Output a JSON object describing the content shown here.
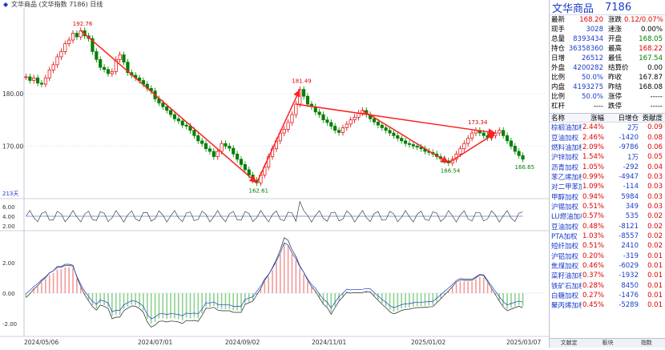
{
  "header": {
    "title": "文华商品 (文华指数 7186) 日线",
    "icon": "indicator-diamond-icon"
  },
  "chart_data": {
    "type": "candlestick",
    "title": "文华商品 (文华指数 7186) 日线",
    "dates": [
      "2024/05/06",
      "2024/07/01",
      "2024/09/02",
      "2024/11/01",
      "2025/01/02",
      "2025/03/07"
    ],
    "price_ticks": [
      180.0,
      170.0
    ],
    "price_ylim": [
      160,
      196
    ],
    "annotations": [
      {
        "label": "192.76",
        "kind": "high"
      },
      {
        "label": "162.61",
        "kind": "low"
      },
      {
        "label": "181.49",
        "kind": "high"
      },
      {
        "label": "173.34",
        "kind": "high"
      },
      {
        "label": "166.54",
        "kind": "low"
      },
      {
        "label": "166.65",
        "kind": "low"
      }
    ],
    "sub_label": "213天",
    "candles": [
      183.2,
      182.5,
      183.0,
      182.0,
      181.8,
      183.0,
      184.5,
      185.5,
      187.0,
      188.0,
      189.5,
      190.2,
      191.5,
      190.8,
      192.0,
      191.0,
      190.5,
      188.0,
      186.5,
      185.0,
      184.6,
      183.8,
      184.2,
      186.5,
      187.4,
      186.0,
      184.0,
      183.5,
      183.0,
      182.5,
      181.8,
      181.0,
      180.5,
      179.0,
      178.2,
      177.5,
      176.8,
      176.0,
      175.2,
      174.8,
      174.0,
      173.8,
      173.0,
      172.0,
      171.0,
      170.5,
      169.5,
      169.0,
      168.0,
      169.0,
      170.5,
      170.0,
      169.6,
      168.5,
      167.5,
      166.5,
      165.5,
      164.5,
      163.5,
      163.0,
      164.5,
      166.0,
      168.0,
      169.5,
      171.0,
      172.5,
      173.2,
      174.5,
      176.0,
      178.0,
      180.8,
      179.5,
      178.0,
      177.5,
      176.5,
      176.0,
      175.0,
      174.5,
      173.8,
      173.0,
      172.6,
      173.5,
      174.2,
      175.0,
      175.5,
      176.3,
      176.8,
      176.0,
      175.2,
      174.6,
      174.0,
      173.5,
      173.0,
      172.5,
      172.0,
      171.5,
      171.0,
      170.5,
      170.3,
      170.0,
      169.8,
      169.5,
      169.0,
      168.8,
      168.5,
      168.0,
      167.6,
      167.2,
      166.8,
      167.5,
      168.5,
      169.5,
      170.5,
      171.5,
      172.5,
      173.0,
      172.5,
      172.0,
      171.6,
      172.0,
      172.5,
      173.0,
      172.0,
      171.0,
      170.0,
      169.0,
      168.2,
      167.5
    ],
    "vol_ticks": [
      6.0,
      4.0,
      2.0
    ],
    "macd_ticks": [
      2.0,
      0.0,
      -2.0
    ]
  },
  "side": {
    "name": "文华商品",
    "code": "7186",
    "quote": [
      {
        "l1": "最新",
        "v1": "168.20",
        "c1": "up",
        "l2": "涨跌",
        "v2": "0.12/0.07%",
        "c2": "up"
      },
      {
        "l1": "现手",
        "v1": "3028",
        "c1": "blue",
        "l2": "速涨",
        "v2": "0.00%",
        "c2": "blk"
      },
      {
        "l1": "总量",
        "v1": "8393434",
        "c1": "blue",
        "l2": "开盘",
        "v2": "168.05",
        "c2": "dn"
      },
      {
        "l1": "持仓",
        "v1": "36358360",
        "c1": "blue",
        "l2": "最高",
        "v2": "168.22",
        "c2": "up"
      },
      {
        "l1": "日增",
        "v1": "26512",
        "c1": "blue",
        "l2": "最低",
        "v2": "167.54",
        "c2": "dn"
      },
      {
        "l1": "外盘",
        "v1": "4200282",
        "c1": "blue",
        "l2": "结算价",
        "v2": "0.00",
        "c2": "blk"
      },
      {
        "l1": "比例",
        "v1": "50.0%",
        "c1": "blue",
        "l2": "昨收",
        "v2": "167.87",
        "c2": "blk"
      },
      {
        "l1": "内盘",
        "v1": "4193275",
        "c1": "blue",
        "l2": "昨结",
        "v2": "168.08",
        "c2": "blk"
      },
      {
        "l1": "比例",
        "v1": "50.0%",
        "c1": "blue",
        "l2": "涨停",
        "v2": "-----",
        "c2": "blk"
      },
      {
        "l1": "杠杆",
        "v1": "----",
        "c1": "blk",
        "l2": "跌停",
        "v2": "-----",
        "c2": "blk"
      }
    ],
    "table_headers": [
      "名称",
      "涨幅",
      "日增仓",
      "贡献度"
    ],
    "rows": [
      [
        "棕榈油加权",
        "2.44%",
        "2万",
        "0.09"
      ],
      [
        "豆油加权",
        "2.46%",
        "-1420",
        "0.08"
      ],
      [
        "燃料油加权",
        "2.09%",
        "-9786",
        "0.06"
      ],
      [
        "沪锌加权",
        "1.54%",
        "1万",
        "0.05"
      ],
      [
        "沥青加权",
        "1.05%",
        "-292",
        "0.04"
      ],
      [
        "苯乙烯加权",
        "0.99%",
        "-4947",
        "0.03"
      ],
      [
        "对二甲苯加权",
        "1.09%",
        "-114",
        "0.03"
      ],
      [
        "甲醇加权",
        "0.94%",
        "5984",
        "0.03"
      ],
      [
        "沪锡加权",
        "0.51%",
        "349",
        "0.03"
      ],
      [
        "LU燃油加权",
        "0.57%",
        "535",
        "0.02"
      ],
      [
        "豆油加权",
        "0.48%",
        "-8121",
        "0.02"
      ],
      [
        "PTA加权",
        "1.03%",
        "-8557",
        "0.02"
      ],
      [
        "短纤加权",
        "0.51%",
        "2410",
        "0.02"
      ],
      [
        "沪铝加权",
        "0.20%",
        "-319",
        "0.01"
      ],
      [
        "焦煤加权",
        "0.46%",
        "-6029",
        "0.01"
      ],
      [
        "菜籽油加权",
        "0.37%",
        "-1932",
        "0.01"
      ],
      [
        "铁矿石加权",
        "0.28%",
        "8450",
        "0.01"
      ],
      [
        "白糖加权",
        "0.27%",
        "-1476",
        "0.01"
      ],
      [
        "聚丙烯加权",
        "0.45%",
        "-5289",
        "0.01"
      ]
    ],
    "tabs": [
      "文献定",
      "板块",
      "指数"
    ]
  },
  "colors": {
    "up": "#e00000",
    "down": "#008000",
    "arrow": "#ff2020",
    "bg": "#ffffff",
    "grid": "#d7dbe6"
  }
}
